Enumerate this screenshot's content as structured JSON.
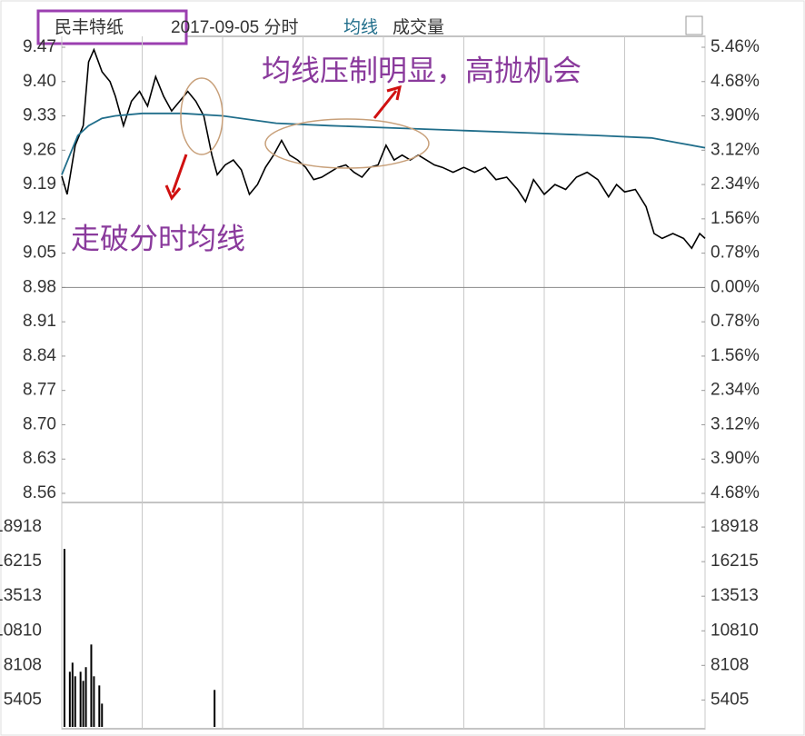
{
  "chart_data": [
    {
      "type": "line",
      "title": "民丰特纸",
      "subtitle": "2017-09-05 分时",
      "xlim": [
        0,
        240
      ],
      "xticks": [
        0,
        30,
        60,
        90,
        120,
        150,
        180,
        210,
        240
      ],
      "ylim": [
        8.56,
        9.47
      ],
      "yticks": [
        {
          "value": 9.47,
          "label": "9.47"
        },
        {
          "value": 9.4,
          "label": "9.40"
        },
        9.33,
        9.26,
        9.19,
        9.12,
        9.05,
        8.98,
        8.91,
        8.84,
        8.77,
        {
          "value": 8.7,
          "label": "8.70"
        },
        8.63,
        8.56
      ],
      "y2lim": [
        -4.68,
        5.46
      ],
      "y2ticks": [
        {
          "value": 5.46,
          "label": "5.46%"
        },
        {
          "value": 4.68,
          "label": "4.68%"
        },
        {
          "value": 3.9,
          "label": "3.90%"
        },
        {
          "value": 3.12,
          "label": "3.12%"
        },
        {
          "value": 2.34,
          "label": "2.34%"
        },
        {
          "value": 1.56,
          "label": "1.56%"
        },
        {
          "value": 0.78,
          "label": "0.78%"
        },
        {
          "value": 0,
          "label": "0.00%"
        },
        {
          "value": -0.78,
          "label": "0.78%"
        },
        {
          "value": -1.56,
          "label": "1.56%"
        },
        {
          "value": -2.34,
          "label": "2.34%"
        },
        {
          "value": -3.12,
          "label": "3.12%"
        },
        {
          "value": -3.9,
          "label": "3.90%"
        },
        {
          "value": -4.68,
          "label": "4.68%"
        }
      ],
      "series": [
        {
          "color": "#000000",
          "x": [
            0,
            2,
            5,
            8,
            10,
            12,
            15,
            18,
            20,
            23,
            26,
            29,
            32,
            35,
            38,
            41,
            44,
            47,
            50,
            53,
            56,
            58,
            61,
            64,
            67,
            70,
            73,
            76,
            79,
            82,
            85,
            88,
            91,
            94,
            97,
            100,
            103,
            106,
            109,
            112,
            115,
            118,
            121,
            124,
            127,
            130,
            133,
            136,
            139,
            142,
            146,
            150,
            154,
            158,
            162,
            166,
            170,
            173,
            176,
            180,
            184,
            188,
            192,
            196,
            200,
            204,
            207,
            210,
            214,
            218,
            221,
            224,
            228,
            232,
            235,
            238,
            240
          ],
          "values": [
            9.207,
            9.17,
            9.27,
            9.31,
            9.44,
            9.465,
            9.42,
            9.4,
            9.37,
            9.31,
            9.36,
            9.38,
            9.35,
            9.41,
            9.37,
            9.34,
            9.36,
            9.38,
            9.36,
            9.33,
            9.25,
            9.21,
            9.23,
            9.24,
            9.22,
            9.17,
            9.19,
            9.225,
            9.25,
            9.28,
            9.25,
            9.24,
            9.225,
            9.2,
            9.205,
            9.215,
            9.225,
            9.23,
            9.215,
            9.205,
            9.225,
            9.23,
            9.27,
            9.24,
            9.25,
            9.24,
            9.25,
            9.24,
            9.23,
            9.225,
            9.215,
            9.225,
            9.215,
            9.225,
            9.2,
            9.205,
            9.18,
            9.155,
            9.2,
            9.17,
            9.19,
            9.18,
            9.205,
            9.215,
            9.2,
            9.165,
            9.19,
            9.175,
            9.18,
            9.145,
            9.09,
            9.08,
            9.09,
            9.08,
            9.06,
            9.09,
            9.08
          ]
        },
        {
          "name": "均线",
          "color": "#1f6d8a",
          "x": [
            0,
            3,
            6,
            10,
            15,
            20,
            30,
            45,
            60,
            80,
            100,
            125,
            150,
            175,
            200,
            220,
            230,
            240
          ],
          "values": [
            9.21,
            9.25,
            9.29,
            9.31,
            9.325,
            9.33,
            9.335,
            9.335,
            9.33,
            9.315,
            9.31,
            9.305,
            9.3,
            9.295,
            9.29,
            9.285,
            9.275,
            9.265
          ]
        }
      ],
      "annotations": [
        "均线压制明显，高抛机会",
        "走破分时均线"
      ]
    },
    {
      "type": "bar",
      "title": "成交量",
      "color": "#000000",
      "x": [
        1,
        3,
        4,
        5,
        7,
        8,
        9,
        11,
        12,
        14,
        15,
        57
      ],
      "values": [
        17210,
        7610,
        8320,
        7255,
        7610,
        6900,
        7970,
        9740,
        7255,
        6540,
        5120,
        6190
      ],
      "ylim": [
        3300,
        20200
      ],
      "yticks": [
        18918,
        16215,
        13513,
        10810,
        8108,
        5405
      ]
    }
  ]
}
